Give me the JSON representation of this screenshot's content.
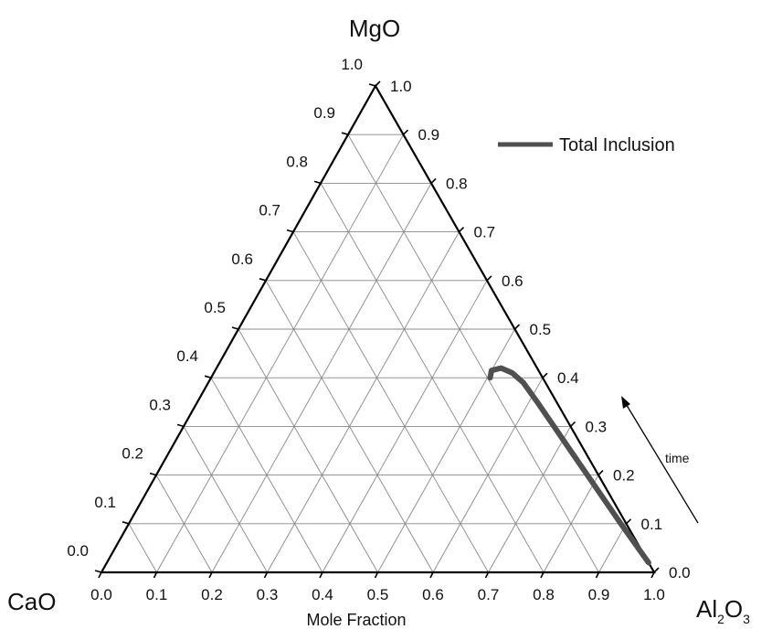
{
  "chart_data": {
    "type": "ternary-line",
    "components": {
      "top": "MgO",
      "left": "CaO",
      "right": "Al2O3"
    },
    "vertex_labels": {
      "top": "MgO",
      "left": "CaO",
      "right_main": "Al",
      "right_sub1": "2",
      "right_mid": "O",
      "right_sub2": "3"
    },
    "axis_title": "Mole Fraction",
    "bottom_ticks": [
      "0.0",
      "0.1",
      "0.2",
      "0.3",
      "0.4",
      "0.5",
      "0.6",
      "0.7",
      "0.8",
      "0.9",
      "1.0"
    ],
    "left_ticks": [
      "0.0",
      "0.1",
      "0.2",
      "0.3",
      "0.4",
      "0.5",
      "0.6",
      "0.7",
      "0.8",
      "0.9",
      "1.0"
    ],
    "right_ticks": [
      "1.0",
      "0.9",
      "0.8",
      "0.7",
      "0.6",
      "0.5",
      "0.4",
      "0.3",
      "0.2",
      "0.1",
      "0.0"
    ],
    "grid_step": 0.1,
    "legend": {
      "label": "Total Inclusion",
      "position": "top-right"
    },
    "annotation": {
      "text": "time"
    },
    "series": [
      {
        "name": "Total Inclusion",
        "color": "#505050",
        "points": [
          {
            "MgO": 0.02,
            "CaO": 0.0,
            "Al2O3": 0.98
          },
          {
            "MgO": 0.06,
            "CaO": 0.005,
            "Al2O3": 0.935
          },
          {
            "MgO": 0.1,
            "CaO": 0.01,
            "Al2O3": 0.89
          },
          {
            "MgO": 0.15,
            "CaO": 0.015,
            "Al2O3": 0.835
          },
          {
            "MgO": 0.2,
            "CaO": 0.02,
            "Al2O3": 0.78
          },
          {
            "MgO": 0.25,
            "CaO": 0.025,
            "Al2O3": 0.725
          },
          {
            "MgO": 0.3,
            "CaO": 0.03,
            "Al2O3": 0.67
          },
          {
            "MgO": 0.35,
            "CaO": 0.035,
            "Al2O3": 0.615
          },
          {
            "MgO": 0.39,
            "CaO": 0.04,
            "Al2O3": 0.57
          },
          {
            "MgO": 0.41,
            "CaO": 0.05,
            "Al2O3": 0.54
          },
          {
            "MgO": 0.42,
            "CaO": 0.065,
            "Al2O3": 0.515
          },
          {
            "MgO": 0.415,
            "CaO": 0.085,
            "Al2O3": 0.5
          },
          {
            "MgO": 0.4,
            "CaO": 0.095,
            "Al2O3": 0.505
          }
        ]
      }
    ]
  }
}
